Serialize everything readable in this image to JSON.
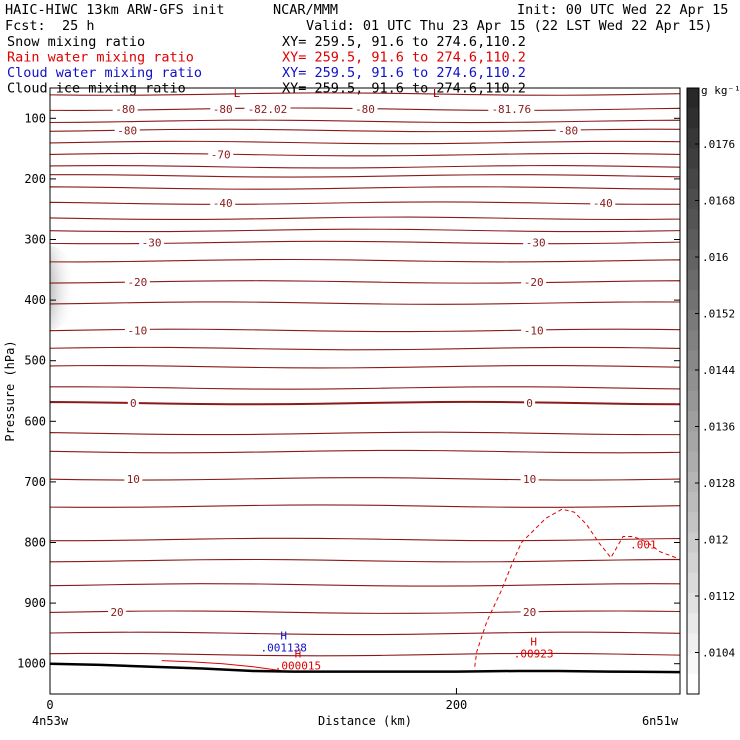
{
  "header": {
    "model": "HAIC-HIWC 13km ARW-GFS init",
    "org": "NCAR/MMM",
    "init": "Init: 00 UTC Wed 22 Apr 15",
    "fcst_label": "Fcst:",
    "fcst_value": "25 h",
    "valid": "Valid: 01 UTC Thu 23 Apr 15 (22 LST Wed 22 Apr 15)",
    "fields": [
      {
        "name": "Snow mixing ratio",
        "xy": "XY= 259.5, 91.6 to 274.6,110.2",
        "color": "#000000"
      },
      {
        "name": "Rain water mixing ratio",
        "xy": "XY= 259.5, 91.6 to 274.6,110.2",
        "color": "#e00000"
      },
      {
        "name": "Cloud water mixing ratio",
        "xy": "XY= 259.5, 91.6 to 274.6,110.2",
        "color": "#1010c8"
      },
      {
        "name": "Cloud ice mixing ratio",
        "xy": "XY= 259.5, 91.6 to 274.6,110.2",
        "color": "#000000"
      }
    ]
  },
  "chart_data": {
    "type": "cross-section contour",
    "xlabel": "Distance (km)",
    "ylabel": "Pressure (hPa)",
    "xlim": [
      0,
      310
    ],
    "ylim": [
      1050,
      50
    ],
    "x_ticks": [
      0,
      200
    ],
    "y_ticks": [
      100,
      200,
      300,
      400,
      500,
      600,
      700,
      800,
      900,
      1000
    ],
    "endpoints": {
      "left": "4n53w",
      "right": "6n51w"
    },
    "isobar_lines": [
      60,
      85,
      105,
      120,
      140,
      160,
      180,
      195,
      215,
      240,
      265,
      285,
      305,
      335,
      370,
      405,
      450,
      480,
      510,
      545,
      570,
      620,
      650,
      695,
      740,
      795,
      830,
      870,
      915,
      950,
      985
    ],
    "temperature_labels": [
      {
        "x": 37,
        "p": 85,
        "text": "-80"
      },
      {
        "x": 107,
        "p": 85,
        "text": "-82.02"
      },
      {
        "x": 227,
        "p": 85,
        "text": "-81.76"
      },
      {
        "x": 155,
        "p": 85,
        "text": "-80"
      },
      {
        "x": 85,
        "p": 85,
        "text": "-80"
      },
      {
        "x": 38,
        "p": 120,
        "text": "-80"
      },
      {
        "x": 255,
        "p": 120,
        "text": "-80"
      },
      {
        "x": 84,
        "p": 160,
        "text": "-70"
      },
      {
        "x": 85,
        "p": 240,
        "text": "-40"
      },
      {
        "x": 272,
        "p": 240,
        "text": "-40"
      },
      {
        "x": 50,
        "p": 305,
        "text": "-30"
      },
      {
        "x": 239,
        "p": 305,
        "text": "-30"
      },
      {
        "x": 43,
        "p": 370,
        "text": "-20"
      },
      {
        "x": 238,
        "p": 370,
        "text": "-20"
      },
      {
        "x": 43,
        "p": 450,
        "text": "-10"
      },
      {
        "x": 238,
        "p": 450,
        "text": "-10"
      },
      {
        "x": 41,
        "p": 570,
        "text": "0"
      },
      {
        "x": 236,
        "p": 570,
        "text": "0"
      },
      {
        "x": 41,
        "p": 695,
        "text": "10"
      },
      {
        "x": 236,
        "p": 695,
        "text": "10"
      },
      {
        "x": 33,
        "p": 915,
        "text": "20"
      },
      {
        "x": 236,
        "p": 915,
        "text": "20"
      }
    ],
    "extrema": [
      {
        "x": 92,
        "p": 65,
        "mark": "L",
        "value": "",
        "color": "#a00000"
      },
      {
        "x": 190,
        "p": 65,
        "mark": "L",
        "value": "",
        "color": "#a00000"
      },
      {
        "x": 115,
        "p": 960,
        "mark": "H",
        "value": ".001138",
        "color": "#1010c8"
      },
      {
        "x": 122,
        "p": 990,
        "mark": "H",
        "value": ".000015",
        "color": "#e00000"
      },
      {
        "x": 238,
        "p": 970,
        "mark": "H",
        "value": ".00923",
        "color": "#e00000"
      }
    ],
    "rain_contour": {
      "label": ".001",
      "label_x": 292,
      "label_p": 810,
      "points": [
        [
          209,
          1005
        ],
        [
          210,
          980
        ],
        [
          215,
          930
        ],
        [
          222,
          880
        ],
        [
          228,
          830
        ],
        [
          232,
          800
        ],
        [
          238,
          780
        ],
        [
          244,
          760
        ],
        [
          252,
          745
        ],
        [
          258,
          750
        ],
        [
          264,
          770
        ],
        [
          270,
          800
        ],
        [
          276,
          825
        ],
        [
          282,
          790
        ],
        [
          287,
          790
        ],
        [
          294,
          800
        ],
        [
          300,
          815
        ],
        [
          308,
          825
        ]
      ],
      "small_points": [
        [
          55,
          995
        ],
        [
          70,
          997
        ],
        [
          85,
          1000
        ],
        [
          100,
          1005
        ],
        [
          115,
          1012
        ]
      ]
    },
    "cloud_ice_shade": {
      "x": 0,
      "p": 380
    },
    "terrain": {
      "points": [
        [
          0,
          1000
        ],
        [
          25,
          1002
        ],
        [
          50,
          1005
        ],
        [
          75,
          1008
        ],
        [
          100,
          1012
        ],
        [
          120,
          1013
        ],
        [
          200,
          1013
        ],
        [
          230,
          1012
        ],
        [
          250,
          1012
        ],
        [
          275,
          1013
        ],
        [
          310,
          1014
        ]
      ]
    },
    "colorbar": {
      "unit": "g kg⁻¹",
      "ticks": [
        ".0176",
        ".0168",
        ".016",
        ".0152",
        ".0144",
        ".0136",
        ".0128",
        ".012",
        ".0112",
        ".0104"
      ]
    }
  }
}
